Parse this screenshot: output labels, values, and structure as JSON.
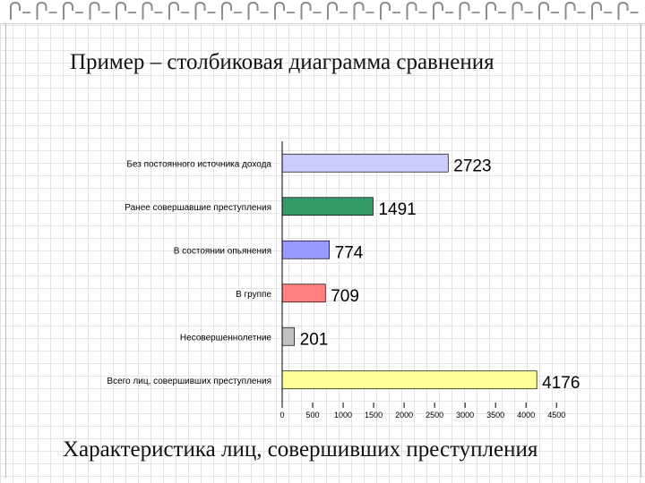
{
  "slide": {
    "title": "Пример – столбиковая диаграмма сравнения",
    "caption": "Характеристика лиц, совершивших преступления"
  },
  "chart_data": {
    "type": "bar",
    "orientation": "horizontal",
    "categories": [
      "Без постоянного источника дохода",
      "Ранее совершавшие преступления",
      "В состоянии опьянения",
      "В группе",
      "Несовершеннолетние",
      "Всего лиц, совершивших преступления"
    ],
    "values": [
      2723,
      1491,
      774,
      709,
      201,
      4176
    ],
    "data_labels": [
      "2723",
      "1491",
      "774",
      "709",
      "201",
      "4176"
    ],
    "colors": [
      "#ccccff",
      "#339966",
      "#9999ff",
      "#ff8080",
      "#c0c0c0",
      "#ffff99"
    ],
    "x_ticks": [
      0,
      500,
      1000,
      1500,
      2000,
      2500,
      3000,
      3500,
      4000,
      4500
    ],
    "xlim": [
      0,
      4500
    ],
    "grid": false,
    "legend": "none"
  }
}
